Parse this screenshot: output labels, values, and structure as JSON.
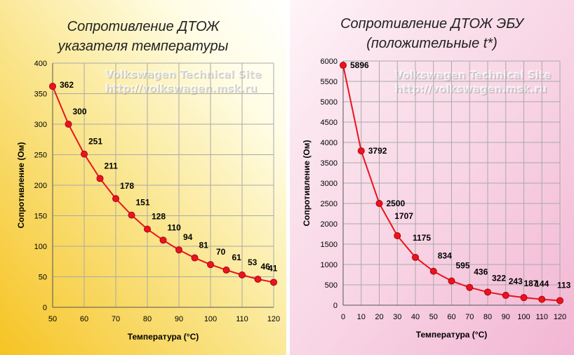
{
  "left": {
    "title_line1": "Сопротивление ДТОЖ",
    "title_line2": "указателя температуры",
    "watermark_line1": "Volkswagen Technical Site",
    "watermark_line2": "http://volkswagen.msk.ru",
    "background": [
      "#f6c323",
      "#fffde6"
    ]
  },
  "right": {
    "title_line1": "Сопротивление ДТОЖ  ЭБУ",
    "title_line2": "(положительные t*)",
    "watermark_line1": "Volkswagen Technical Site",
    "watermark_line2": "http://volkswagen.msk.ru",
    "background": [
      "#f2b5d3",
      "#fff5f9"
    ]
  },
  "chart_data": [
    {
      "type": "line",
      "title": "Сопротивление ДТОЖ указателя температуры",
      "xlabel": "Температура (°C)",
      "ylabel": "Сопротивление (Ом)",
      "xlim": [
        50,
        120
      ],
      "ylim": [
        0,
        400
      ],
      "xticks": [
        50,
        60,
        70,
        80,
        90,
        100,
        110,
        120
      ],
      "yticks": [
        0,
        50,
        100,
        150,
        200,
        250,
        300,
        350,
        400
      ],
      "grid": true,
      "line_color": "#e8141e",
      "x": [
        50,
        55,
        60,
        65,
        70,
        75,
        80,
        85,
        90,
        95,
        100,
        105,
        110,
        115,
        120
      ],
      "y": [
        362,
        300,
        251,
        211,
        178,
        151,
        128,
        110,
        94,
        81,
        70,
        61,
        53,
        46,
        41
      ],
      "data_labels": [
        "362",
        "300",
        "251",
        "211",
        "178",
        "151",
        "128",
        "110",
        "94",
        "81",
        "70",
        "61",
        "53",
        "46",
        "41"
      ]
    },
    {
      "type": "line",
      "title": "Сопротивление ДТОЖ ЭБУ (положительные t*)",
      "xlabel": "Температура (°C)",
      "ylabel": "Сопротивление (Ом)",
      "xlim": [
        0,
        120
      ],
      "ylim": [
        0,
        6000
      ],
      "xticks": [
        0,
        10,
        20,
        30,
        40,
        50,
        60,
        70,
        80,
        90,
        100,
        110,
        120
      ],
      "yticks": [
        0,
        500,
        1000,
        1500,
        2000,
        2500,
        3000,
        3500,
        4000,
        4500,
        5000,
        5500,
        6000
      ],
      "grid": true,
      "line_color": "#e8141e",
      "x": [
        0,
        10,
        20,
        30,
        40,
        50,
        60,
        70,
        80,
        90,
        100,
        110,
        120
      ],
      "y": [
        5896,
        3792,
        2500,
        1707,
        1175,
        834,
        595,
        436,
        322,
        243,
        187,
        144,
        113
      ],
      "data_labels": [
        "5896",
        "3792",
        "2500",
        "1707",
        "1175",
        "834",
        "595",
        "436",
        "322",
        "243",
        "187",
        "144",
        "113"
      ]
    }
  ]
}
